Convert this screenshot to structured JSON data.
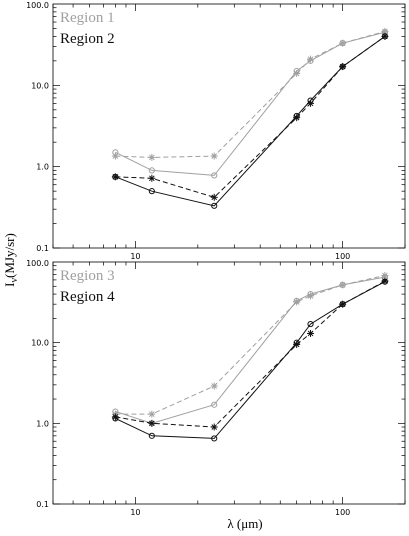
{
  "chart_data": [
    {
      "type": "line",
      "xscale": "log",
      "yscale": "log",
      "xlim": [
        4,
        200
      ],
      "ylim": [
        0.1,
        100
      ],
      "xticks": [
        10,
        100
      ],
      "xticklabels": [
        "10",
        "100"
      ],
      "yticks": [
        0.1,
        1,
        10,
        100
      ],
      "yticklabels": [
        "0.1",
        "1.0",
        "10.0",
        "100.0"
      ],
      "xlabel": "λ (μm)",
      "ylabel": "Iν(MJy/sr)",
      "legend_position": "top-left",
      "series": [
        {
          "name": "Region 1",
          "color": "#a0a0a0",
          "style": "solid",
          "marker": "circle",
          "x": [
            8,
            12,
            24,
            60,
            70,
            100,
            160
          ],
          "y": [
            1.5,
            0.9,
            0.78,
            15,
            20,
            33,
            45
          ]
        },
        {
          "name": "Region 1",
          "color": "#a0a0a0",
          "style": "dashed",
          "marker": "asterisk",
          "x": [
            8,
            12,
            24,
            60,
            70,
            100,
            160
          ],
          "y": [
            1.35,
            1.3,
            1.35,
            14,
            21,
            33,
            46
          ]
        },
        {
          "name": "Region 2",
          "color": "#111111",
          "style": "solid",
          "marker": "circle",
          "x": [
            8,
            12,
            24,
            60,
            70,
            100,
            160
          ],
          "y": [
            0.75,
            0.5,
            0.33,
            4.2,
            6.5,
            17,
            40
          ]
        },
        {
          "name": "Region 2",
          "color": "#111111",
          "style": "dashed",
          "marker": "asterisk",
          "x": [
            8,
            12,
            24,
            60,
            70,
            100,
            160
          ],
          "y": [
            0.75,
            0.72,
            0.42,
            4.0,
            6.0,
            17,
            40
          ]
        }
      ],
      "legend": [
        {
          "label": "Region 1",
          "color": "#a0a0a0"
        },
        {
          "label": "Region 2",
          "color": "#111111"
        }
      ]
    },
    {
      "type": "line",
      "xscale": "log",
      "yscale": "log",
      "xlim": [
        4,
        200
      ],
      "ylim": [
        0.1,
        100
      ],
      "xticks": [
        10,
        100
      ],
      "xticklabels": [
        "10",
        "100"
      ],
      "yticks": [
        0.1,
        1,
        10,
        100
      ],
      "yticklabels": [
        "0.1",
        "1.0",
        "10.0",
        "100.0"
      ],
      "xlabel": "λ (μm)",
      "ylabel": "Iν(MJy/sr)",
      "legend_position": "top-left",
      "series": [
        {
          "name": "Region 3",
          "color": "#a0a0a0",
          "style": "solid",
          "marker": "circle",
          "x": [
            8,
            12,
            24,
            60,
            70,
            100,
            160
          ],
          "y": [
            1.4,
            1.0,
            1.7,
            33,
            40,
            52,
            65
          ]
        },
        {
          "name": "Region 3",
          "color": "#a0a0a0",
          "style": "dashed",
          "marker": "asterisk",
          "x": [
            8,
            12,
            24,
            60,
            70,
            100,
            160
          ],
          "y": [
            1.3,
            1.3,
            2.9,
            32,
            38,
            52,
            68
          ]
        },
        {
          "name": "Region 4",
          "color": "#111111",
          "style": "solid",
          "marker": "circle",
          "x": [
            8,
            12,
            24,
            60,
            70,
            100,
            160
          ],
          "y": [
            1.15,
            0.7,
            0.65,
            10,
            17,
            30,
            57
          ]
        },
        {
          "name": "Region 4",
          "color": "#111111",
          "style": "dashed",
          "marker": "asterisk",
          "x": [
            8,
            12,
            24,
            60,
            70,
            100,
            160
          ],
          "y": [
            1.2,
            1.0,
            0.9,
            9.5,
            13,
            30,
            58
          ]
        }
      ],
      "legend": [
        {
          "label": "Region 3",
          "color": "#a0a0a0"
        },
        {
          "label": "Region 4",
          "color": "#111111"
        }
      ]
    }
  ],
  "shared": {
    "xlabel": "λ (μm)",
    "ylabel_main": "I",
    "ylabel_sub": "ν",
    "ylabel_rest": "(MJy/sr)"
  }
}
